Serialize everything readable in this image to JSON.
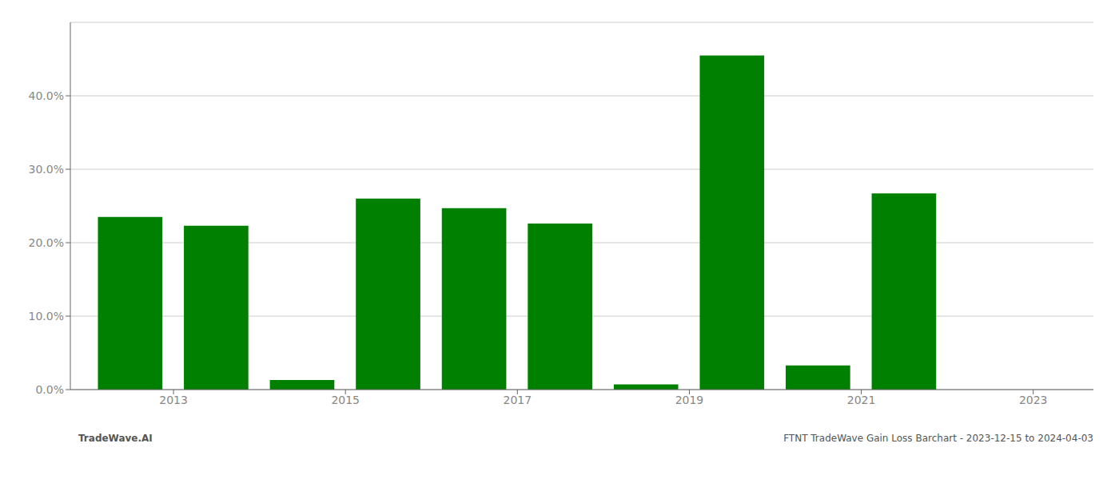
{
  "chart_data": {
    "type": "bar",
    "x": [
      2012,
      2013,
      2014,
      2015,
      2016,
      2017,
      2018,
      2019,
      2020,
      2021,
      2022
    ],
    "values": [
      0.235,
      0.223,
      0.013,
      0.26,
      0.247,
      0.226,
      0.007,
      0.455,
      0.033,
      0.267,
      0.0
    ],
    "color": "#008000",
    "xlim": [
      2011.3,
      2023.2
    ],
    "xticks": [
      {
        "value": 2012.5,
        "label": "2013"
      },
      {
        "value": 2014.5,
        "label": "2015"
      },
      {
        "value": 2016.5,
        "label": "2017"
      },
      {
        "value": 2018.5,
        "label": "2019"
      },
      {
        "value": 2020.5,
        "label": "2021"
      },
      {
        "value": 2022.5,
        "label": "2023"
      }
    ],
    "ylim": [
      0,
      0.5
    ],
    "yticks": [
      {
        "value": 0.0,
        "label": "0.0%"
      },
      {
        "value": 0.1,
        "label": "10.0%"
      },
      {
        "value": 0.2,
        "label": "20.0%"
      },
      {
        "value": 0.3,
        "label": "30.0%"
      },
      {
        "value": 0.4,
        "label": "40.0%"
      }
    ],
    "grid": true,
    "annotations": [
      "TradeWave.AI",
      "FTNT TradeWave Gain Loss Barchart - 2023-12-15 to 2024-04-03"
    ]
  }
}
